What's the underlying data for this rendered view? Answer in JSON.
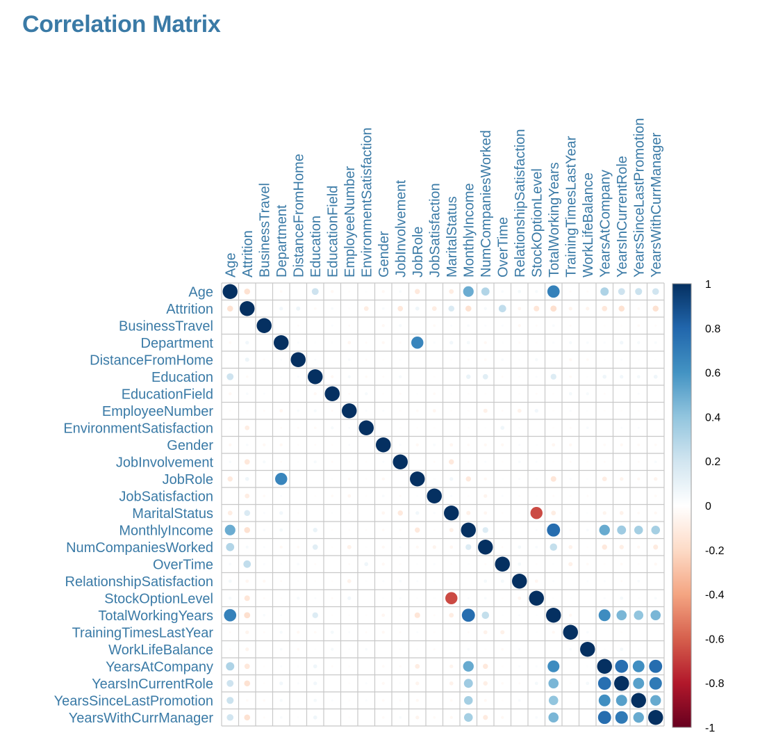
{
  "title": "Correlation Matrix",
  "chart_data": {
    "type": "heatmap",
    "method": "circle",
    "title": "Correlation Matrix",
    "variables": [
      "Age",
      "Attrition",
      "BusinessTravel",
      "Department",
      "DistanceFromHome",
      "Education",
      "EducationField",
      "EmployeeNumber",
      "EnvironmentSatisfaction",
      "Gender",
      "JobInvolvement",
      "JobRole",
      "JobSatisfaction",
      "MaritalStatus",
      "MonthlyIncome",
      "NumCompaniesWorked",
      "OverTime",
      "RelationshipSatisfaction",
      "StockOptionLevel",
      "TotalWorkingYears",
      "TrainingTimesLastYear",
      "WorkLifeBalance",
      "YearsAtCompany",
      "YearsInCurrentRole",
      "YearsSinceLastPromotion",
      "YearsWithCurrManager"
    ],
    "matrix": [
      [
        1.0,
        -0.16,
        0.0,
        -0.03,
        0.0,
        0.21,
        -0.04,
        -0.01,
        0.01,
        -0.04,
        0.03,
        -0.12,
        0.0,
        -0.1,
        0.5,
        0.3,
        0.03,
        0.05,
        0.04,
        0.68,
        -0.02,
        -0.02,
        0.31,
        0.21,
        0.22,
        0.2
      ],
      [
        -0.16,
        1.0,
        0.0,
        0.06,
        0.08,
        -0.03,
        0.03,
        -0.01,
        -0.1,
        0.03,
        -0.13,
        0.07,
        -0.1,
        0.16,
        -0.16,
        0.04,
        0.25,
        -0.05,
        -0.14,
        -0.17,
        -0.06,
        -0.06,
        -0.13,
        -0.16,
        -0.03,
        -0.16
      ],
      [
        0.0,
        0.0,
        1.0,
        0.0,
        -0.02,
        0.0,
        0.02,
        -0.02,
        0.0,
        -0.04,
        0.04,
        0.0,
        -0.03,
        0.02,
        0.03,
        0.02,
        0.02,
        -0.04,
        -0.02,
        0.03,
        -0.02,
        0.0,
        -0.01,
        -0.01,
        -0.03,
        -0.02
      ],
      [
        -0.03,
        0.06,
        0.0,
        1.0,
        0.02,
        0.01,
        0.01,
        -0.05,
        -0.02,
        -0.04,
        -0.02,
        0.66,
        0.02,
        0.06,
        0.05,
        -0.04,
        0.01,
        -0.02,
        -0.01,
        0.02,
        0.04,
        0.03,
        0.02,
        0.06,
        0.04,
        0.03
      ],
      [
        0.0,
        0.08,
        -0.02,
        0.02,
        1.0,
        0.02,
        0.0,
        0.03,
        -0.02,
        -0.01,
        0.01,
        0.0,
        0.0,
        -0.01,
        -0.02,
        -0.03,
        0.03,
        0.01,
        0.04,
        0.0,
        -0.04,
        -0.03,
        0.01,
        0.02,
        0.01,
        0.01
      ],
      [
        0.21,
        -0.03,
        0.0,
        0.01,
        0.02,
        1.0,
        -0.04,
        0.04,
        -0.03,
        -0.02,
        0.04,
        0.0,
        -0.01,
        0.0,
        0.09,
        0.13,
        -0.02,
        -0.01,
        0.02,
        0.15,
        -0.03,
        0.01,
        0.07,
        0.06,
        0.05,
        0.07
      ],
      [
        -0.04,
        0.03,
        0.02,
        0.01,
        0.0,
        -0.04,
        1.0,
        -0.02,
        0.04,
        -0.01,
        -0.02,
        0.01,
        -0.03,
        0.01,
        -0.01,
        -0.01,
        0.0,
        -0.01,
        -0.02,
        -0.01,
        0.05,
        0.04,
        -0.02,
        0.0,
        0.02,
        0.0
      ],
      [
        -0.01,
        -0.01,
        -0.02,
        -0.05,
        0.03,
        0.04,
        -0.02,
        1.0,
        0.02,
        0.02,
        -0.01,
        -0.03,
        -0.05,
        -0.01,
        -0.01,
        -0.08,
        -0.02,
        -0.07,
        0.06,
        -0.01,
        0.02,
        0.01,
        -0.01,
        -0.01,
        -0.01,
        -0.01
      ],
      [
        0.01,
        -0.1,
        0.0,
        -0.02,
        -0.02,
        -0.03,
        0.04,
        0.02,
        1.0,
        0.0,
        -0.01,
        -0.01,
        -0.01,
        0.0,
        -0.01,
        0.01,
        0.07,
        0.01,
        0.0,
        -0.01,
        -0.02,
        0.03,
        0.0,
        0.02,
        0.02,
        0.0
      ],
      [
        -0.04,
        0.03,
        -0.04,
        -0.04,
        -0.01,
        -0.02,
        -0.01,
        0.02,
        0.0,
        1.0,
        0.02,
        -0.04,
        0.03,
        -0.05,
        -0.03,
        -0.04,
        -0.04,
        0.02,
        0.01,
        -0.05,
        -0.04,
        0.0,
        -0.03,
        -0.04,
        -0.03,
        -0.03
      ],
      [
        0.03,
        -0.13,
        0.04,
        -0.02,
        0.01,
        0.04,
        -0.02,
        -0.01,
        -0.01,
        0.02,
        1.0,
        0.0,
        -0.02,
        -0.12,
        -0.02,
        0.02,
        -0.01,
        0.03,
        0.02,
        -0.01,
        -0.02,
        -0.01,
        -0.02,
        0.01,
        -0.02,
        0.03
      ],
      [
        -0.12,
        0.07,
        0.0,
        0.66,
        0.0,
        0.0,
        0.01,
        -0.03,
        -0.01,
        -0.04,
        0.0,
        1.0,
        0.01,
        0.06,
        -0.12,
        -0.04,
        0.01,
        0.02,
        0.01,
        -0.14,
        0.02,
        0.01,
        -0.1,
        -0.06,
        -0.04,
        -0.06
      ],
      [
        0.0,
        -0.1,
        -0.03,
        0.02,
        0.0,
        -0.01,
        -0.03,
        -0.05,
        -0.01,
        0.03,
        -0.02,
        0.01,
        1.0,
        0.02,
        -0.01,
        -0.06,
        0.02,
        -0.01,
        0.01,
        -0.02,
        -0.01,
        -0.02,
        0.0,
        0.0,
        0.0,
        -0.03
      ],
      [
        -0.1,
        0.16,
        0.02,
        0.06,
        -0.01,
        0.0,
        0.01,
        -0.01,
        0.0,
        -0.05,
        -0.12,
        0.06,
        0.02,
        1.0,
        -0.08,
        -0.05,
        -0.01,
        0.01,
        -0.66,
        -0.1,
        -0.01,
        0.01,
        -0.06,
        -0.07,
        -0.03,
        -0.04
      ],
      [
        0.5,
        -0.16,
        0.03,
        0.05,
        -0.02,
        0.09,
        -0.01,
        -0.01,
        -0.01,
        -0.03,
        -0.02,
        -0.12,
        -0.01,
        -0.08,
        1.0,
        0.15,
        0.01,
        0.0,
        0.02,
        0.77,
        -0.02,
        0.03,
        0.51,
        0.36,
        0.34,
        0.34
      ],
      [
        0.3,
        0.04,
        0.02,
        -0.04,
        -0.03,
        0.13,
        -0.01,
        -0.08,
        0.01,
        -0.04,
        0.02,
        -0.04,
        -0.06,
        -0.05,
        0.15,
        1.0,
        -0.02,
        0.05,
        0.03,
        0.24,
        -0.07,
        -0.01,
        -0.12,
        -0.09,
        -0.04,
        -0.11
      ],
      [
        0.03,
        0.25,
        0.02,
        0.01,
        0.03,
        -0.02,
        0.0,
        -0.02,
        0.07,
        -0.04,
        -0.01,
        0.01,
        0.02,
        -0.01,
        0.01,
        -0.02,
        1.0,
        0.05,
        -0.01,
        0.01,
        -0.08,
        -0.03,
        -0.01,
        -0.03,
        -0.01,
        -0.04
      ],
      [
        0.05,
        -0.05,
        -0.04,
        -0.02,
        0.01,
        -0.01,
        -0.01,
        -0.07,
        0.01,
        0.02,
        0.03,
        0.02,
        -0.01,
        0.01,
        0.0,
        0.05,
        0.05,
        1.0,
        -0.05,
        0.02,
        0.0,
        0.02,
        0.02,
        -0.02,
        0.03,
        0.0
      ],
      [
        0.04,
        -0.14,
        -0.02,
        -0.01,
        0.04,
        0.02,
        -0.02,
        0.06,
        0.0,
        0.01,
        0.02,
        0.01,
        0.01,
        -0.66,
        0.02,
        0.03,
        -0.01,
        -0.05,
        1.0,
        0.01,
        0.01,
        0.0,
        0.02,
        0.05,
        0.01,
        0.03
      ],
      [
        0.68,
        -0.17,
        0.03,
        0.02,
        0.0,
        0.15,
        -0.01,
        -0.01,
        -0.01,
        -0.05,
        -0.01,
        -0.14,
        -0.02,
        -0.1,
        0.77,
        0.24,
        0.01,
        0.02,
        0.01,
        1.0,
        -0.04,
        0.0,
        0.63,
        0.46,
        0.4,
        0.46
      ],
      [
        -0.02,
        -0.06,
        -0.02,
        0.04,
        -0.04,
        -0.03,
        0.05,
        0.02,
        -0.02,
        -0.04,
        -0.02,
        0.02,
        -0.01,
        -0.01,
        -0.02,
        -0.07,
        -0.08,
        0.0,
        0.01,
        -0.04,
        1.0,
        0.03,
        0.0,
        -0.01,
        0.0,
        0.0
      ],
      [
        -0.02,
        -0.06,
        0.0,
        0.03,
        -0.03,
        0.01,
        0.04,
        0.01,
        0.03,
        0.0,
        -0.01,
        0.01,
        -0.02,
        0.01,
        0.03,
        -0.01,
        -0.03,
        0.02,
        0.0,
        0.0,
        0.03,
        1.0,
        0.01,
        0.05,
        0.01,
        0.0
      ],
      [
        0.31,
        -0.13,
        -0.01,
        0.02,
        0.01,
        0.07,
        -0.02,
        -0.01,
        0.0,
        -0.03,
        -0.02,
        -0.1,
        0.0,
        -0.06,
        0.51,
        -0.12,
        -0.01,
        0.02,
        0.02,
        0.63,
        0.0,
        0.01,
        1.0,
        0.76,
        0.62,
        0.77
      ],
      [
        0.21,
        -0.16,
        -0.01,
        0.06,
        0.02,
        0.06,
        0.0,
        -0.01,
        0.02,
        -0.04,
        0.01,
        -0.06,
        0.0,
        -0.07,
        0.36,
        -0.09,
        -0.03,
        -0.02,
        0.05,
        0.46,
        -0.01,
        0.05,
        0.76,
        1.0,
        0.55,
        0.71
      ],
      [
        0.22,
        -0.03,
        -0.03,
        0.04,
        0.01,
        0.05,
        0.02,
        -0.01,
        0.02,
        -0.03,
        -0.02,
        -0.04,
        0.0,
        -0.03,
        0.34,
        -0.04,
        -0.01,
        0.03,
        0.01,
        0.4,
        0.0,
        0.01,
        0.62,
        0.55,
        1.0,
        0.51
      ],
      [
        0.2,
        -0.16,
        -0.02,
        0.03,
        0.01,
        0.07,
        0.0,
        -0.01,
        0.0,
        -0.03,
        0.03,
        -0.06,
        -0.03,
        -0.04,
        0.34,
        -0.11,
        -0.04,
        0.0,
        0.03,
        0.46,
        0.0,
        0.0,
        0.77,
        0.71,
        0.51,
        1.0
      ]
    ],
    "color_scale": {
      "range": [
        -1,
        1
      ],
      "ticks": [
        "1",
        "0.8",
        "0.6",
        "0.4",
        "0.2",
        "0",
        "-0.2",
        "-0.4",
        "-0.6",
        "-0.8",
        "-1"
      ],
      "palette": [
        "#67001F",
        "#B2182B",
        "#D6604D",
        "#F4A582",
        "#FDDBC7",
        "#FFFFFF",
        "#D1E5F0",
        "#92C5DE",
        "#4393C3",
        "#2166AC",
        "#053061"
      ]
    },
    "legend_placement": "right",
    "grid": true
  }
}
